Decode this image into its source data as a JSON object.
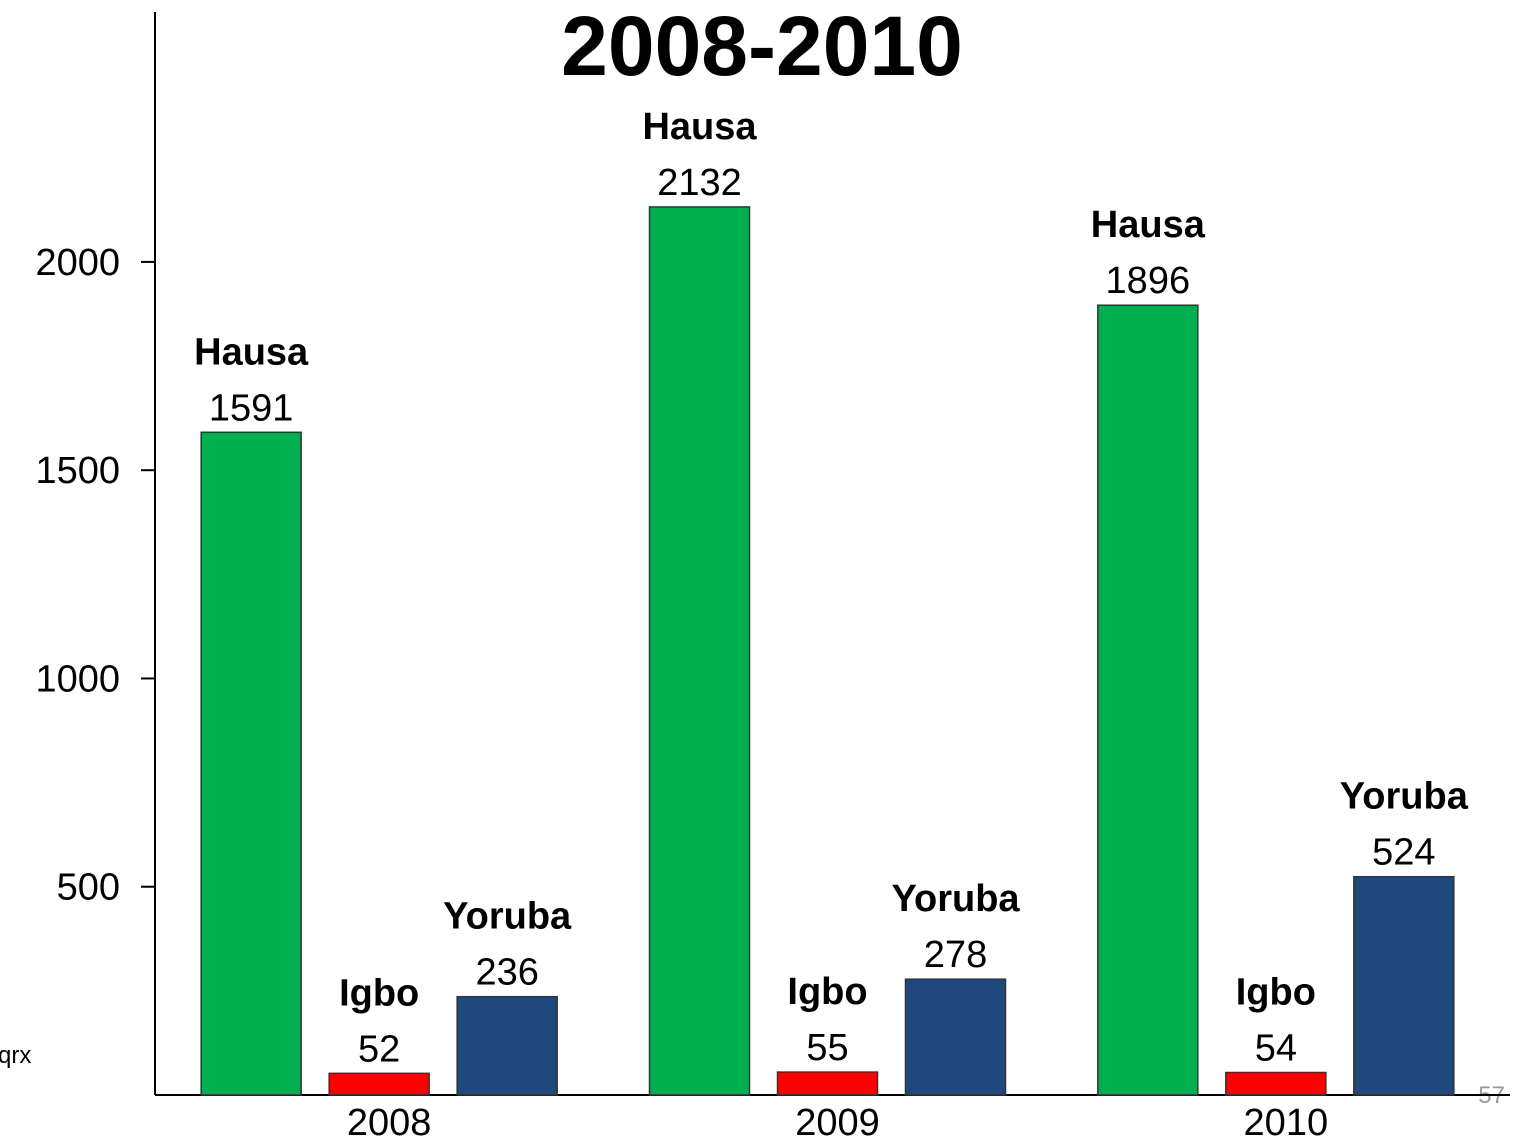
{
  "chart_data": {
    "type": "bar",
    "title": "2008-2010",
    "categories": [
      "2008",
      "2009",
      "2010"
    ],
    "series": [
      {
        "name": "Hausa",
        "color": "#00b050",
        "values": [
          1591,
          2132,
          1896
        ]
      },
      {
        "name": "Igbo",
        "color": "#ff0000",
        "values": [
          52,
          55,
          54
        ]
      },
      {
        "name": "Yoruba",
        "color": "#1f497d",
        "values": [
          236,
          278,
          524
        ]
      }
    ],
    "ylim": [
      0,
      2600
    ],
    "yticks": [
      500,
      1000,
      1500,
      2000
    ],
    "grid": false
  },
  "footer": {
    "left_text": "qrx",
    "slide_number": "57"
  }
}
